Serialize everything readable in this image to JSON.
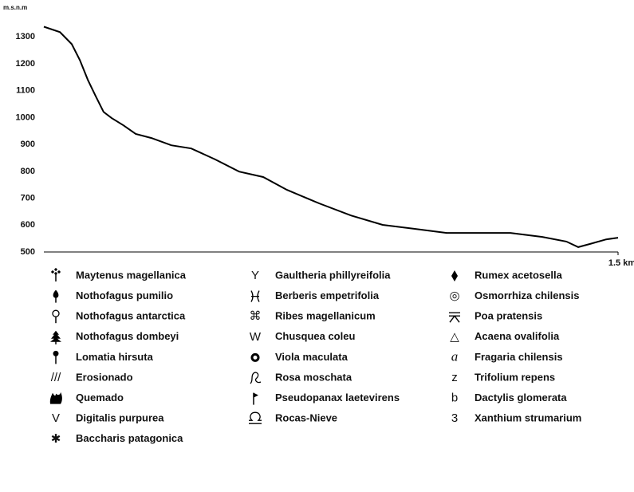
{
  "chart_data": {
    "type": "line",
    "ylabel": "m.s.n.m",
    "x": [
      0,
      0.042,
      0.073,
      0.094,
      0.115,
      0.135,
      0.156,
      0.177,
      0.208,
      0.24,
      0.281,
      0.333,
      0.385,
      0.448,
      0.51,
      0.573,
      0.635,
      0.719,
      0.802,
      0.885,
      0.969,
      1.052,
      1.135,
      1.219,
      1.302,
      1.365,
      1.396,
      1.427,
      1.469,
      1.5
    ],
    "values": [
      1338,
      1318,
      1273,
      1214,
      1140,
      1081,
      1021,
      998,
      971,
      939,
      924,
      897,
      885,
      844,
      799,
      779,
      731,
      681,
      636,
      601,
      586,
      571,
      571,
      571,
      556,
      539,
      518,
      530,
      547,
      553
    ],
    "color": "#000000",
    "xlim": [
      0,
      1.5
    ],
    "xticks": [
      {
        "value": 1.5,
        "label": "1.5 km"
      }
    ],
    "ylim": [
      500,
      1390
    ],
    "yticks": [
      500,
      600,
      700,
      800,
      900,
      1000,
      1100,
      1200,
      1300
    ],
    "legend": [
      {
        "label": "Maytenus magellanica"
      },
      {
        "label": "Nothofagus pumilio"
      },
      {
        "label": "Nothofagus antarctica"
      },
      {
        "label": "Nothofagus dombeyi"
      },
      {
        "label": "Lomatia hirsuta"
      },
      {
        "symbol": "///",
        "label": "Erosionado"
      },
      {
        "label": "Quemado"
      },
      {
        "symbol": "V",
        "label": "Digitalis purpurea"
      },
      {
        "symbol": "✱",
        "label": "Baccharis patagonica"
      },
      {
        "symbol": "Y",
        "label": "Gaultheria phillyreifolia"
      },
      {
        "label": "Berberis empetrifolia"
      },
      {
        "symbol": "⌘",
        "label": "Ribes magellanicum"
      },
      {
        "symbol": "W",
        "label": "Chusquea coleu"
      },
      {
        "label": "Viola maculata"
      },
      {
        "label": "Rosa moschata"
      },
      {
        "label": "Pseudopanax laetevirens"
      },
      {
        "label": "Rocas-Nieve"
      },
      {
        "label": "Rumex acetosella"
      },
      {
        "symbol": "◎",
        "label": "Osmorrhiza chilensis"
      },
      {
        "label": "Poa pratensis"
      },
      {
        "symbol": "△",
        "label": "Acaena ovalifolia"
      },
      {
        "symbol": "a",
        "label": "Fragaria chilensis"
      },
      {
        "symbol": "z",
        "label": "Trifolium repens"
      },
      {
        "symbol": "b",
        "label": "Dactylis glomerata"
      },
      {
        "symbol": "3",
        "label": "Xanthium strumarium"
      }
    ]
  }
}
